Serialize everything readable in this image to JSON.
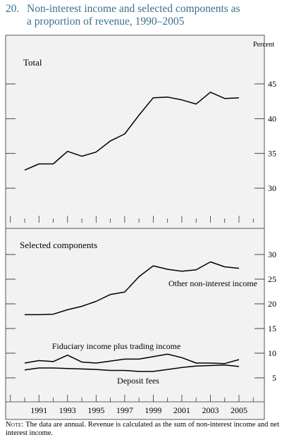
{
  "figure": {
    "number": "20.",
    "title_line1": "Non-interest income and selected components as",
    "title_line2": "a proportion of revenue, 1990–2005",
    "note_label": "Note:",
    "note_text": " The data are annual. Revenue is calculated as the sum of non-interest income and net interest income."
  },
  "colors": {
    "title": "#3a6f8f",
    "line": "#000000",
    "panel_bg": "#f2f2f2",
    "panel_border": "#555555"
  },
  "chart_data": [
    {
      "type": "line",
      "panel_label": "Total",
      "unit_label": "Percent",
      "x": [
        1990,
        1991,
        1992,
        1993,
        1994,
        1995,
        1996,
        1997,
        1998,
        1999,
        2000,
        2001,
        2002,
        2003,
        2004,
        2005
      ],
      "series": [
        {
          "values": [
            32.6,
            33.5,
            33.5,
            35.3,
            34.6,
            35.2,
            36.8,
            37.8,
            40.5,
            43.0,
            43.1,
            42.7,
            42.1,
            43.8,
            42.9,
            43.0
          ]
        }
      ],
      "yticks": [
        30,
        35,
        40,
        45
      ],
      "ylim": [
        25.5,
        47.5
      ],
      "xticks": [
        1991,
        1993,
        1995,
        1997,
        1999,
        2001,
        2003,
        2005
      ]
    },
    {
      "type": "line",
      "panel_label": "Selected components",
      "x": [
        1990,
        1991,
        1992,
        1993,
        1994,
        1995,
        1996,
        1997,
        1998,
        1999,
        2000,
        2001,
        2002,
        2003,
        2004,
        2005
      ],
      "series": [
        {
          "name": "Other non-interest income",
          "values": [
            17.8,
            17.8,
            17.9,
            18.8,
            19.5,
            20.5,
            21.9,
            22.4,
            25.5,
            27.7,
            27.0,
            26.6,
            26.9,
            28.5,
            27.5,
            27.2
          ]
        },
        {
          "name": "Fiduciary income plus trading income",
          "values": [
            8.0,
            8.5,
            8.3,
            9.6,
            8.2,
            8.0,
            8.4,
            8.8,
            8.8,
            9.3,
            9.8,
            9.1,
            8.0,
            8.0,
            7.9,
            8.7
          ]
        },
        {
          "name": "Deposit fees",
          "values": [
            6.6,
            7.0,
            7.0,
            6.9,
            6.8,
            6.7,
            6.5,
            6.5,
            6.3,
            6.3,
            6.7,
            7.1,
            7.4,
            7.5,
            7.6,
            7.3
          ]
        }
      ],
      "yticks": [
        5,
        10,
        15,
        20,
        25,
        30
      ],
      "ylim": [
        1,
        32
      ],
      "xticks": [
        1991,
        1993,
        1995,
        1997,
        1999,
        2001,
        2003,
        2005
      ]
    }
  ]
}
